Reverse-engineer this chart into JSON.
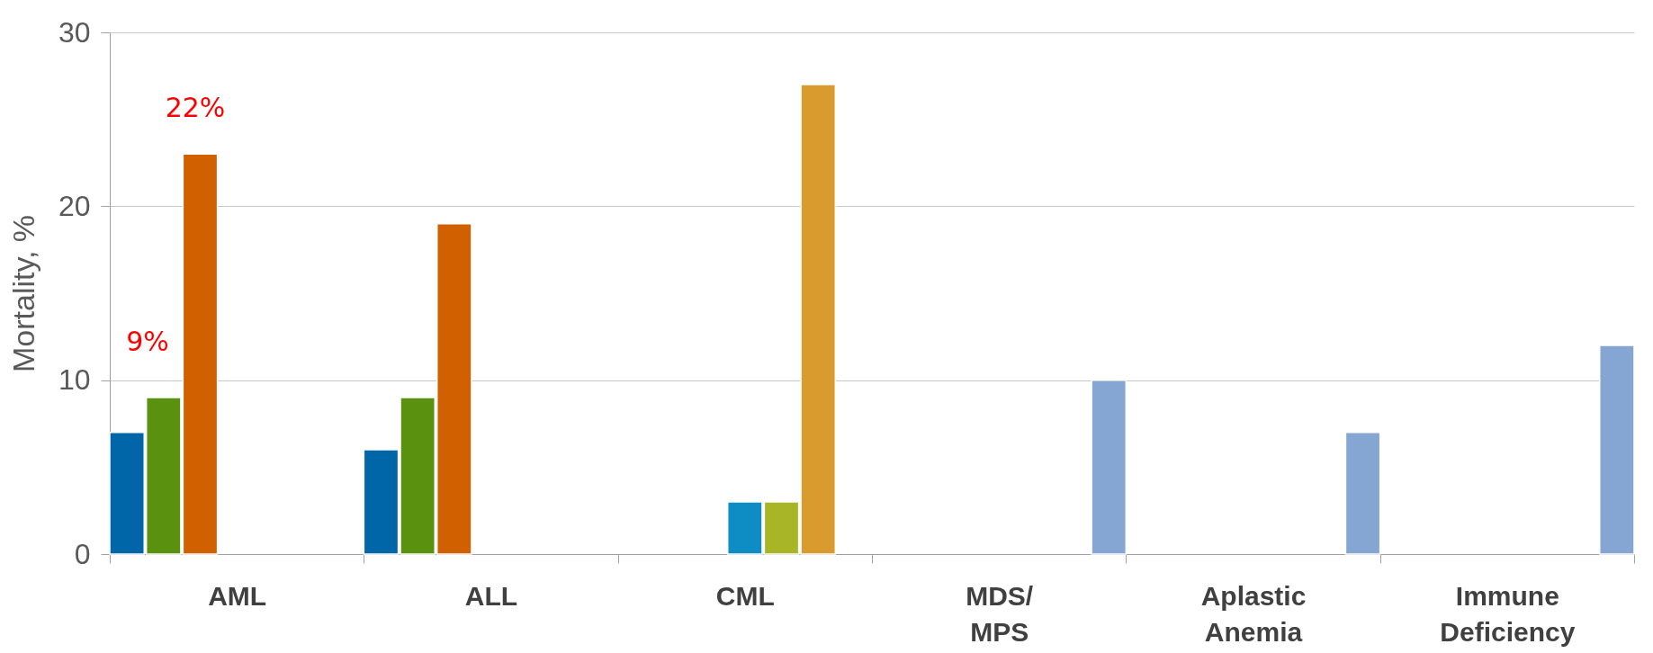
{
  "chart_data": {
    "type": "bar",
    "ylabel": "Mortality, %",
    "categories": [
      "AML",
      "ALL",
      "CML",
      "MDS/\nMPS",
      "Aplastic\nAnemia",
      "Immune\nDeficiency"
    ],
    "series": [
      {
        "color": "#0066a8",
        "values": [
          7,
          6,
          null,
          null,
          null,
          null
        ]
      },
      {
        "color": "#5a9210",
        "values": [
          9,
          9,
          null,
          null,
          null,
          null
        ]
      },
      {
        "color": "#d06000",
        "values": [
          23,
          19,
          null,
          null,
          null,
          null
        ]
      },
      {
        "color": "#0e8cc4",
        "values": [
          null,
          null,
          3,
          null,
          null,
          null
        ]
      },
      {
        "color": "#a8b526",
        "values": [
          null,
          null,
          3,
          null,
          null,
          null
        ]
      },
      {
        "color": "#d99a2e",
        "values": [
          null,
          null,
          27,
          null,
          null,
          null
        ]
      },
      {
        "color": "#85a6d3",
        "values": [
          null,
          null,
          null,
          10,
          7,
          12
        ]
      }
    ],
    "ylim": [
      0,
      30
    ],
    "yticks": [
      0,
      10,
      20,
      30
    ],
    "grid": "y",
    "annotations": [
      "9%",
      "22%"
    ]
  }
}
